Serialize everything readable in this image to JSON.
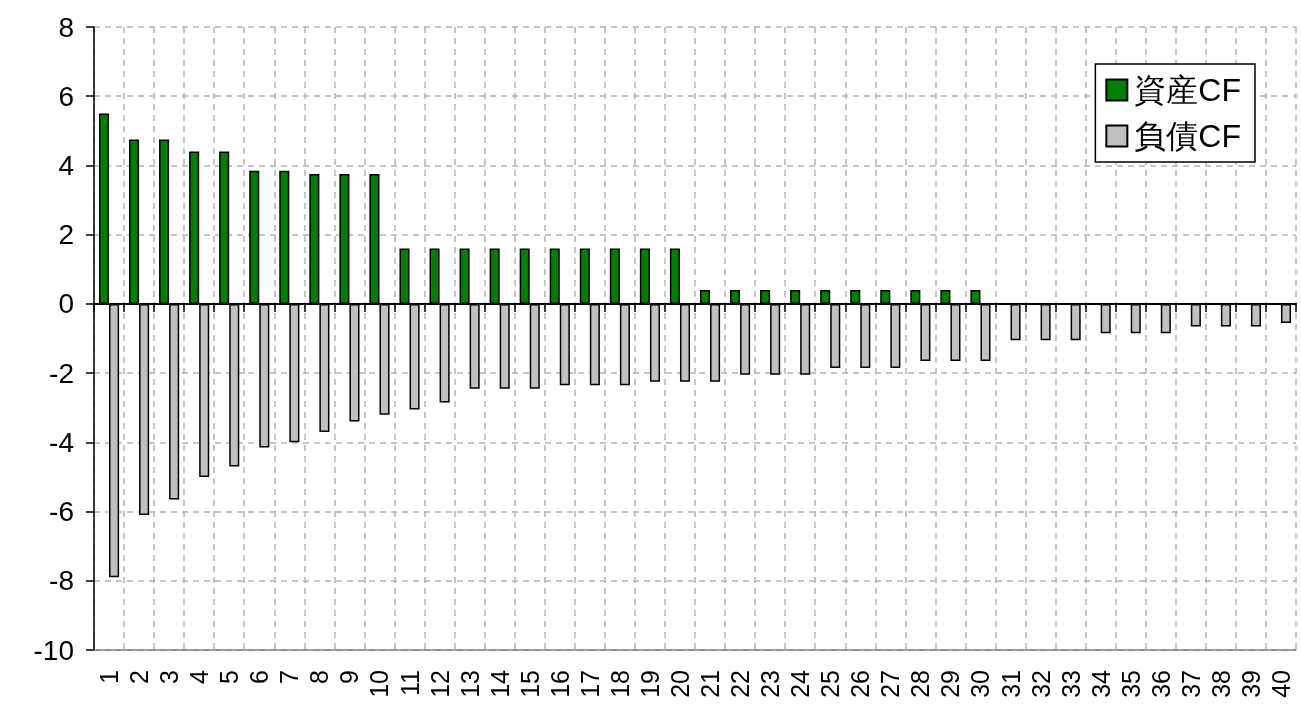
{
  "chart_data": {
    "type": "bar",
    "categories": [
      "1",
      "2",
      "3",
      "4",
      "5",
      "6",
      "7",
      "8",
      "9",
      "10",
      "11",
      "12",
      "13",
      "14",
      "15",
      "16",
      "17",
      "18",
      "19",
      "20",
      "21",
      "22",
      "23",
      "24",
      "25",
      "26",
      "27",
      "28",
      "29",
      "30",
      "31",
      "32",
      "33",
      "34",
      "35",
      "36",
      "37",
      "38",
      "39",
      "40"
    ],
    "series": [
      {
        "name": "資産CF",
        "color": "#008000",
        "values": [
          5.5,
          4.75,
          4.75,
          4.4,
          4.4,
          3.85,
          3.85,
          3.75,
          3.75,
          3.75,
          1.6,
          1.6,
          1.6,
          1.6,
          1.6,
          1.6,
          1.6,
          1.6,
          1.6,
          1.6,
          0.4,
          0.4,
          0.4,
          0.4,
          0.4,
          0.4,
          0.4,
          0.4,
          0.4,
          0.4,
          null,
          null,
          null,
          null,
          null,
          null,
          null,
          null,
          null,
          null
        ]
      },
      {
        "name": "負債CF",
        "color": "#c0c0c0",
        "values": [
          -7.9,
          -6.1,
          -5.65,
          -5.0,
          -4.7,
          -4.15,
          -4.0,
          -3.7,
          -3.4,
          -3.2,
          -3.05,
          -2.85,
          -2.45,
          -2.45,
          -2.45,
          -2.35,
          -2.35,
          -2.35,
          -2.25,
          -2.25,
          -2.25,
          -2.05,
          -2.05,
          -2.05,
          -1.85,
          -1.85,
          -1.85,
          -1.65,
          -1.65,
          -1.65,
          -1.05,
          -1.05,
          -1.05,
          -0.85,
          -0.85,
          -0.85,
          -0.65,
          -0.65,
          -0.65,
          -0.55
        ]
      }
    ],
    "ylim": [
      -10,
      8
    ],
    "yticks": [
      -10,
      -8,
      -6,
      -4,
      -2,
      0,
      2,
      4,
      6,
      8
    ],
    "grid": true,
    "legend": "top right"
  }
}
